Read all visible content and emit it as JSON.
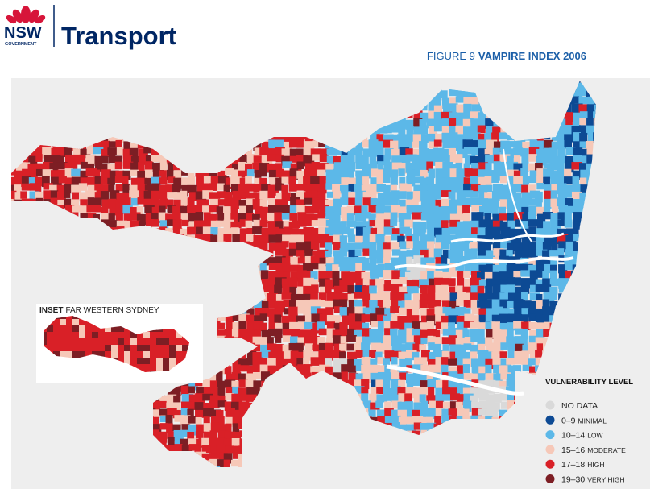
{
  "header": {
    "logo_short": "NSW",
    "logo_sub": "GOVERNMENT",
    "brand": "Transport"
  },
  "figure": {
    "label": "FIGURE 9",
    "title": "VAMPIRE INDEX 2006"
  },
  "inset": {
    "label": "INSET",
    "title": "FAR WESTERN SYDNEY"
  },
  "legend": {
    "title": "VULNERABILITY LEVEL",
    "items": [
      {
        "range": "NO DATA",
        "color": "#d9d9d9"
      },
      {
        "range": "0–9",
        "level": "MINIMAL",
        "color": "#0d4a94"
      },
      {
        "range": "10–14",
        "level": "LOW",
        "color": "#5cb8e8"
      },
      {
        "range": "15–16",
        "level": "MODERATE",
        "color": "#f6c8b8"
      },
      {
        "range": "17–18",
        "level": "HIGH",
        "color": "#d92027"
      },
      {
        "range": "19–30",
        "level": "VERY HIGH",
        "color": "#7d1e24"
      }
    ]
  }
}
